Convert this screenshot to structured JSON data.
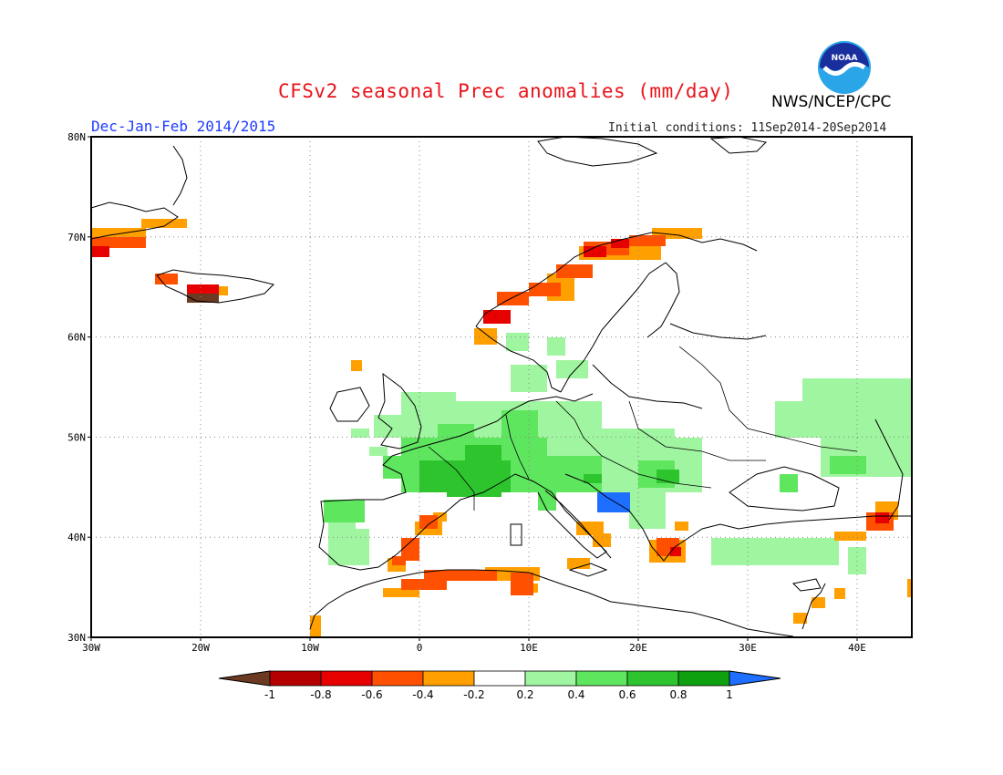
{
  "title": "CFSv2 seasonal Prec anomalies (mm/day)",
  "period": "Dec-Jan-Feb 2014/2015",
  "initial_conditions": "Initial conditions: 11Sep2014-20Sep2014",
  "agency": "NWS/NCEP/CPC",
  "logo_text": "NOAA",
  "map": {
    "lon_range": [
      -30,
      45
    ],
    "lat_range": [
      30,
      80
    ],
    "grid": true,
    "lat_ticks": [
      "80N",
      "70N",
      "60N",
      "50N",
      "40N",
      "30N"
    ],
    "lon_ticks": [
      "30W",
      "20W",
      "10W",
      "0",
      "10E",
      "20E",
      "30E",
      "40E"
    ]
  },
  "colorbar": {
    "labels": [
      "-1",
      "-0.8",
      "-0.6",
      "-0.4",
      "-0.2",
      "0.2",
      "0.4",
      "0.6",
      "0.8",
      "1"
    ],
    "colors": [
      "#6b3a23",
      "#b40000",
      "#e60000",
      "#ff5000",
      "#ff9f00",
      "#ffffff",
      "#a0f5a0",
      "#5fe65f",
      "#2ec42e",
      "#0fa00f",
      "#1e6eff"
    ]
  }
}
